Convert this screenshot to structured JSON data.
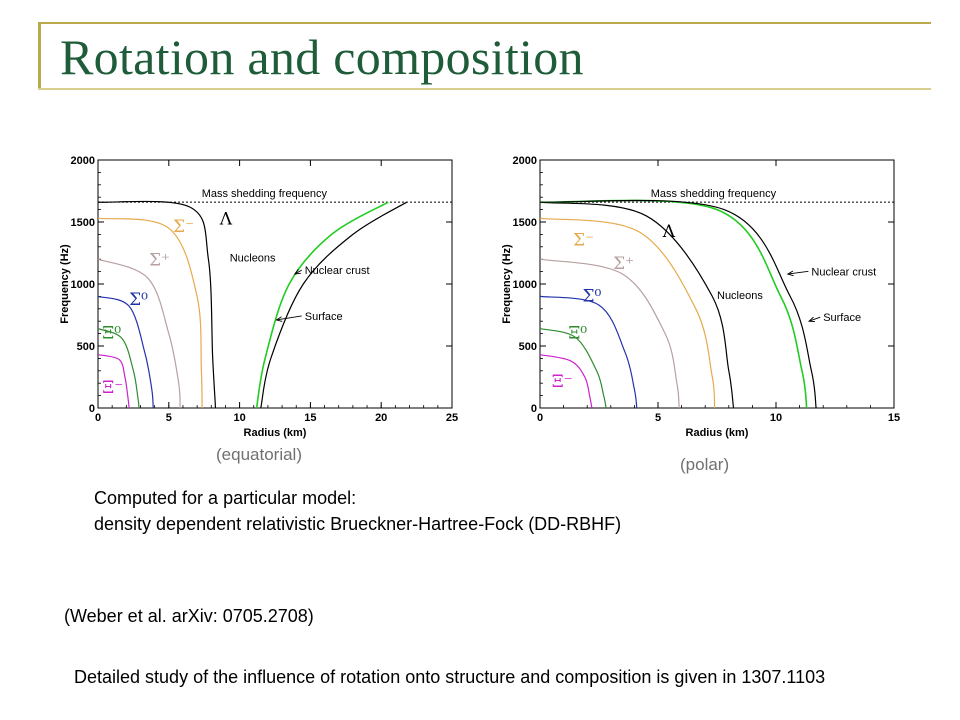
{
  "slide": {
    "title": "Rotation and composition",
    "label_equatorial": "(equatorial)",
    "label_polar": "(polar)",
    "caption_line1": "Computed for a particular model:",
    "caption_line2": "density dependent relativistic Brueckner-Hartree-Fock (DD-RBHF)",
    "reference": "(Weber et al. arXiv: 0705.2708)",
    "footer": "Detailed study of the influence of rotation onto structure and composition is given in 1307.1103"
  },
  "chart_data": [
    {
      "type": "line",
      "xlabel": "Radius (km)",
      "ylabel": "Frequency (Hz)",
      "xlim": [
        0,
        25
      ],
      "ylim": [
        0,
        2000
      ],
      "xticks": [
        0,
        5,
        10,
        15,
        20,
        25
      ],
      "yticks": [
        0,
        500,
        1000,
        1500,
        2000
      ],
      "hline": {
        "y": 1660,
        "label": "Mass shedding frequency"
      },
      "series": [
        {
          "name": "Ξ⁻",
          "color": "#cc22cc",
          "x": [
            0,
            1.5,
            1.9,
            2.1,
            2.2
          ],
          "y": [
            430,
            390,
            250,
            100,
            0
          ]
        },
        {
          "name": "Ξ⁰",
          "color": "#2e8b2e",
          "x": [
            0,
            1.7,
            2.5,
            2.8,
            2.9
          ],
          "y": [
            640,
            560,
            300,
            100,
            0
          ]
        },
        {
          "name": "Σ⁰",
          "color": "#2233aa",
          "x": [
            0,
            2.2,
            3.3,
            3.8,
            3.9
          ],
          "y": [
            900,
            820,
            450,
            150,
            0
          ]
        },
        {
          "name": "Σ⁺",
          "color": "#b7a0a0",
          "x": [
            0,
            3.5,
            5.0,
            5.7,
            5.8
          ],
          "y": [
            1200,
            1050,
            600,
            200,
            0
          ]
        },
        {
          "name": "Σ⁻",
          "color": "#e6a94b",
          "x": [
            0,
            5.0,
            7.0,
            7.3,
            7.35
          ],
          "y": [
            1530,
            1450,
            900,
            300,
            0
          ]
        },
        {
          "name": "Λ",
          "color": "#000000",
          "x": [
            0,
            6.5,
            7.8,
            8.1,
            8.3
          ],
          "y": [
            1660,
            1620,
            1200,
            400,
            0
          ]
        },
        {
          "name": "Nuclear crust",
          "color": "#22cc22",
          "x": [
            11.2,
            11.8,
            13.5,
            16.5,
            20.5
          ],
          "y": [
            0,
            400,
            1000,
            1400,
            1660
          ]
        },
        {
          "name": "Surface",
          "color": "#000000",
          "x": [
            11.5,
            12.2,
            14.5,
            18.0,
            21.8
          ],
          "y": [
            0,
            400,
            1000,
            1400,
            1660
          ]
        }
      ],
      "annotations": [
        "Nucleons",
        "Nuclear crust",
        "Surface"
      ]
    },
    {
      "type": "line",
      "xlabel": "Radius (km)",
      "ylabel": "Frequency (Hz)",
      "xlim": [
        0,
        15
      ],
      "ylim": [
        0,
        2000
      ],
      "xticks": [
        0,
        5,
        10,
        15
      ],
      "yticks": [
        0,
        500,
        1000,
        1500,
        2000
      ],
      "hline": {
        "y": 1660,
        "label": "Mass shedding frequency"
      },
      "series": [
        {
          "name": "Ξ⁻",
          "color": "#cc22cc",
          "x": [
            0,
            1.3,
            1.9,
            2.1,
            2.2
          ],
          "y": [
            430,
            380,
            250,
            100,
            0
          ]
        },
        {
          "name": "Ξ⁰",
          "color": "#2e8b2e",
          "x": [
            0,
            1.5,
            2.4,
            2.7,
            2.8
          ],
          "y": [
            640,
            570,
            300,
            100,
            0
          ]
        },
        {
          "name": "Σ⁰",
          "color": "#2233aa",
          "x": [
            0,
            2.5,
            3.6,
            4.0,
            4.1
          ],
          "y": [
            900,
            830,
            450,
            150,
            0
          ]
        },
        {
          "name": "Σ⁺",
          "color": "#b7a0a0",
          "x": [
            0,
            3.5,
            5.3,
            5.8,
            5.9
          ],
          "y": [
            1200,
            1080,
            600,
            200,
            0
          ]
        },
        {
          "name": "Σ⁻",
          "color": "#e6a94b",
          "x": [
            0,
            4.2,
            6.6,
            7.3,
            7.4
          ],
          "y": [
            1530,
            1420,
            800,
            250,
            0
          ]
        },
        {
          "name": "Λ",
          "color": "#000000",
          "x": [
            0,
            4.5,
            7.3,
            8.0,
            8.2
          ],
          "y": [
            1660,
            1550,
            900,
            300,
            0
          ]
        },
        {
          "name": "Nuclear crust",
          "color": "#22cc22",
          "x": [
            0,
            7.5,
            10.2,
            11.1,
            11.3
          ],
          "y": [
            1660,
            1600,
            900,
            300,
            0
          ]
        },
        {
          "name": "Surface",
          "color": "#000000",
          "x": [
            0,
            7.8,
            10.6,
            11.5,
            11.7
          ],
          "y": [
            1660,
            1600,
            900,
            300,
            0
          ]
        }
      ],
      "annotations": [
        "Nucleons",
        "Nuclear crust",
        "Surface"
      ]
    }
  ]
}
